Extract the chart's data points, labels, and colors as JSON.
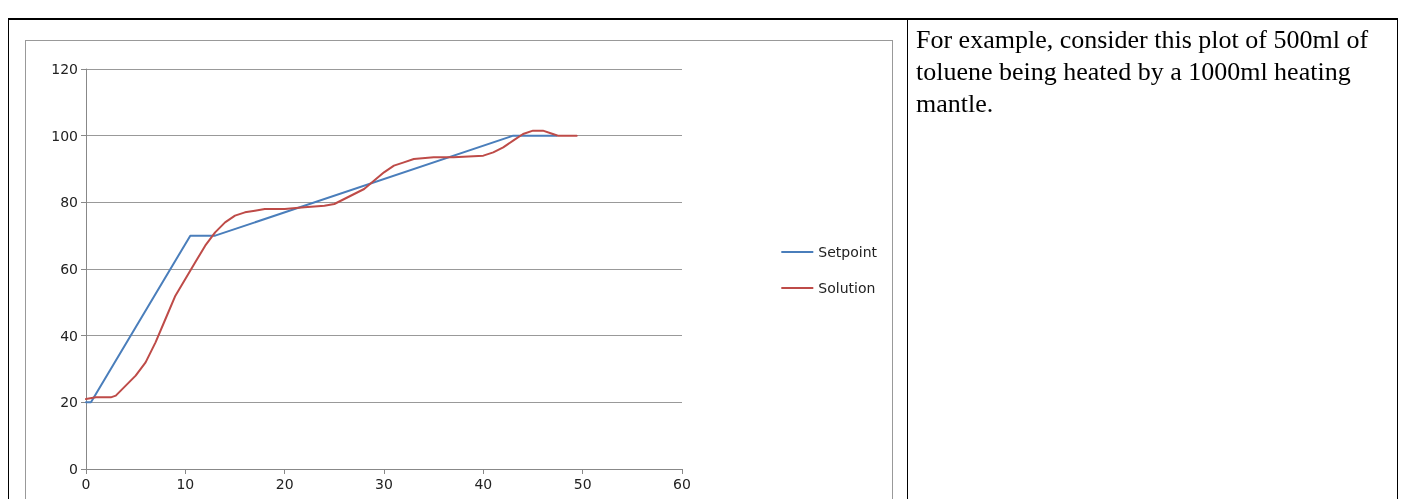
{
  "chart_data": {
    "type": "line",
    "xlim": [
      0,
      60
    ],
    "xticks": [
      0,
      10,
      20,
      30,
      40,
      50,
      60
    ],
    "ylim": [
      0,
      120
    ],
    "yticks": [
      0,
      20,
      40,
      60,
      80,
      100,
      120
    ],
    "grid": "y",
    "legend": "right",
    "marker": "none",
    "line_style": "solid",
    "series": [
      {
        "name": "Setpoint",
        "color": "#4a7ebb",
        "x": [
          0,
          0.5,
          10.5,
          13,
          43,
          47.4
        ],
        "values": [
          20,
          20,
          70,
          70,
          100,
          100
        ]
      },
      {
        "name": "Solution",
        "color": "#be4b48",
        "x": [
          0,
          1,
          2.5,
          3,
          4,
          5,
          6,
          7,
          8,
          9,
          10,
          11,
          12,
          13,
          14,
          15,
          16,
          17,
          18,
          20,
          22,
          24,
          25,
          26,
          28,
          30,
          31,
          32,
          33,
          35,
          37,
          39,
          40,
          41,
          42,
          43,
          44,
          45,
          46,
          47,
          47.5,
          49.4
        ],
        "values": [
          21,
          21.5,
          21.5,
          22,
          25,
          28,
          32,
          38,
          45,
          52,
          57,
          62,
          67,
          71,
          74,
          76,
          77,
          77.5,
          78,
          78,
          78.5,
          79,
          79.5,
          81,
          84,
          89,
          91,
          92,
          93,
          93.5,
          93.5,
          93.8,
          94,
          95,
          96.5,
          98.5,
          100.5,
          101.5,
          101.5,
          100.5,
          100,
          100
        ]
      }
    ],
    "annotations": [
      "For example, consider this plot of 500ml of toluene being heated by a 1000ml heating mantle."
    ]
  }
}
